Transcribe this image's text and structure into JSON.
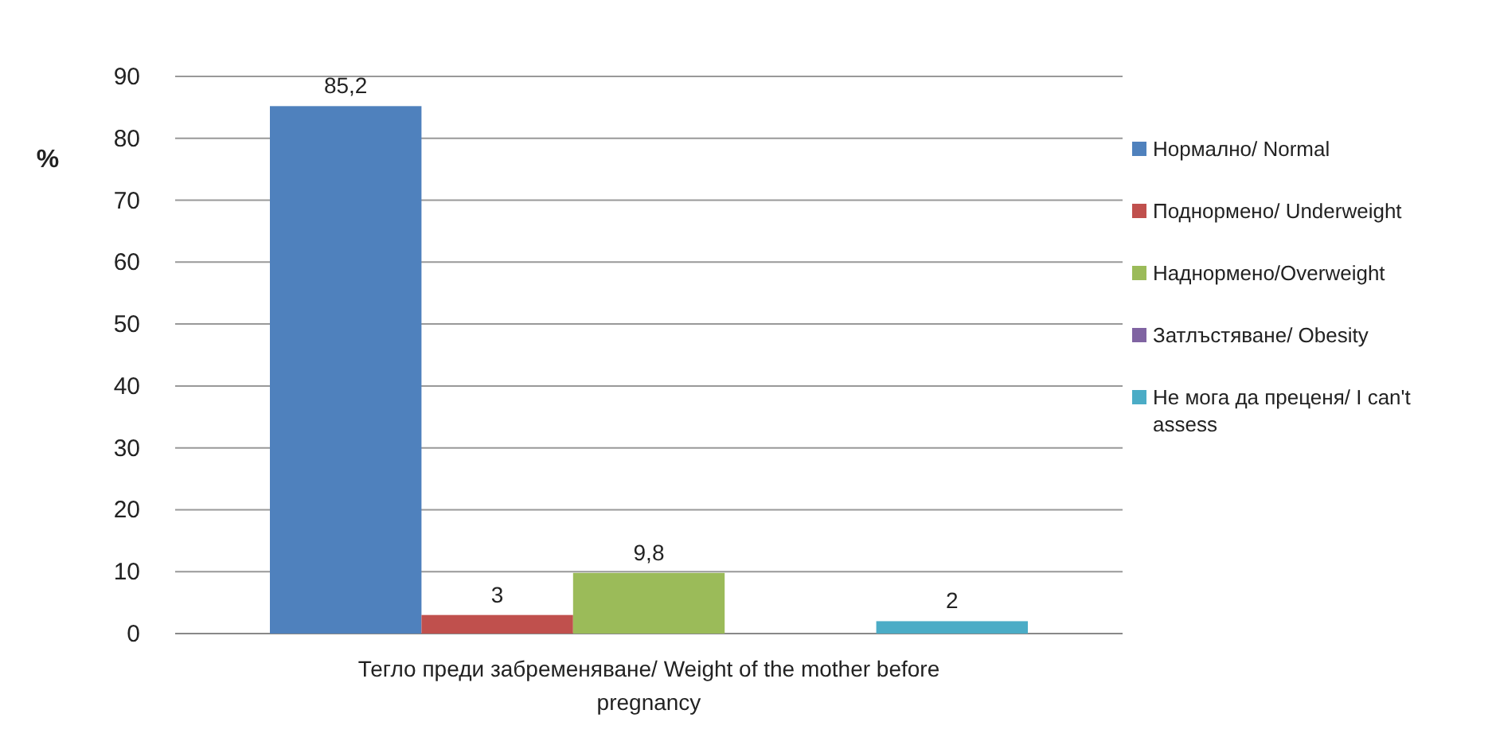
{
  "chart_data": {
    "type": "bar",
    "ylabel": "%",
    "categories": [
      "Тегло преди забременяване/ Weight of the mother before pregnancy"
    ],
    "series": [
      {
        "name": "Нормално/ Normal",
        "color": "#4f81bd",
        "values": [
          85.2
        ],
        "value_labels": [
          "85,2"
        ]
      },
      {
        "name": "Поднормено/ Underweight",
        "color": "#c0504d",
        "values": [
          3
        ],
        "value_labels": [
          "3"
        ]
      },
      {
        "name": "Наднормено/Overweight",
        "color": "#9bbb59",
        "values": [
          9.8
        ],
        "value_labels": [
          "9,8"
        ]
      },
      {
        "name": "Затлъстяване/ Obesity",
        "color": "#8064a2",
        "values": [
          null
        ]
      },
      {
        "name": "Не мога да преценя/ I can't assess",
        "color": "#4bacc6",
        "values": [
          2
        ],
        "value_labels": [
          "2"
        ]
      }
    ],
    "ylim": [
      0,
      90
    ],
    "yticks": [
      0,
      10,
      20,
      30,
      40,
      50,
      60,
      70,
      80,
      90
    ],
    "grid": "y",
    "legend": "right"
  }
}
